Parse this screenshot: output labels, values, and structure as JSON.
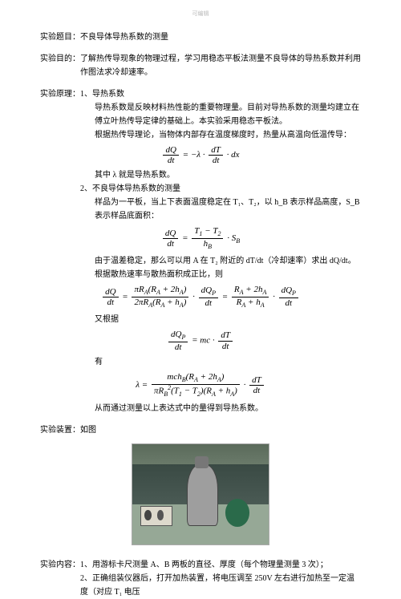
{
  "header": {
    "mark": "可编辑"
  },
  "s1": {
    "label": "实验题目：",
    "text": "不良导体导热系数的测量"
  },
  "s2": {
    "label": "实验目的：",
    "text": "了解热传导现象的物理过程，学习用稳态平板法测量不良导体的导热系数并利用作图法求冷却速率。"
  },
  "s3": {
    "label": "实验原理：",
    "h1": {
      "num": "1、",
      "title": "导热系数"
    },
    "p1": "导热系数是反映材料热性能的重要物理量。目前对导热系数的测量均建立在傅立叶热传导定律的基础上。本实验采用稳态平板法。",
    "p2": "根据热传导理论，当物体内部存在温度梯度时，热量从高温向低温传导：",
    "eq1_note": "其中 λ 就是导热系数。",
    "h2": {
      "num": "2、",
      "title": "不良导体导热系数的测量"
    },
    "p3": "样品为一平板，当上下表面温度稳定在 T₁、T₂，以 h_B 表示样品高度，S_B 表示样品底面积：",
    "p4": "由于温差稳定，那么可以用 A 在 T₂ 附近的 dT/dt（冷却速率）求出 dQ/dt。",
    "p5": "根据散热速率与散热面积成正比，则",
    "p6": "又根据",
    "p7": "有",
    "p8": "从而通过测量以上表达式中的量得到导热系数。"
  },
  "s4": {
    "label": "实验装置：",
    "text": "如图"
  },
  "s5": {
    "label": "实验内容：",
    "i1": {
      "num": "1、",
      "text": "用游标卡尺测量 A、B 两板的直径、厚度（每个物理量测量 3 次）；"
    },
    "i2": {
      "num": "2、",
      "text": "正确组装仪器后，打开加热装置，将电压调至 250V 左右进行加热至一定温度（对应 T₁ 电压"
    }
  }
}
